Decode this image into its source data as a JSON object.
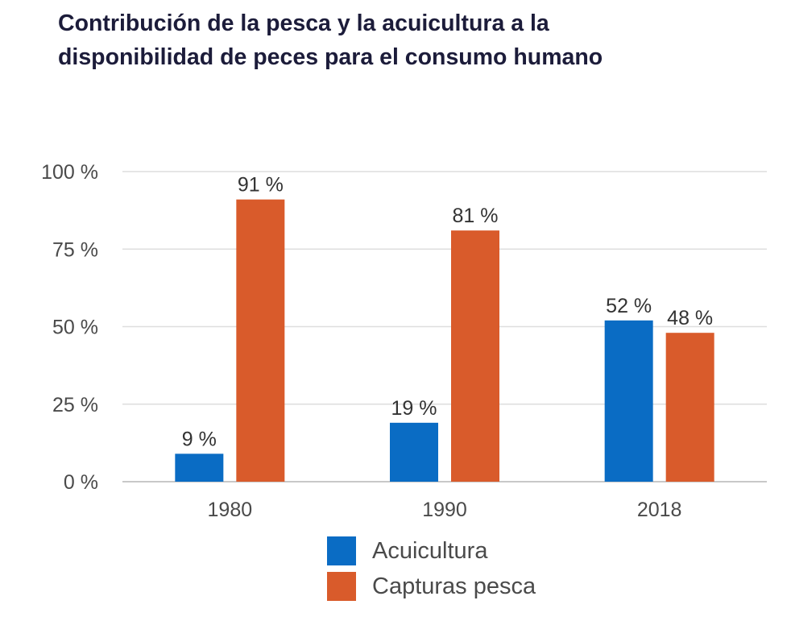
{
  "title": {
    "line1": "Contribución de la pesca y la acuicultura a la",
    "line2": "disponibilidad de peces para el consumo humano"
  },
  "chart_data": {
    "type": "bar",
    "title": "Contribución de la pesca y la acuicultura a la disponibilidad de peces para el consumo humano",
    "categories": [
      "1980",
      "1990",
      "2018"
    ],
    "series": [
      {
        "name": "Acuicultura",
        "values": [
          9,
          19,
          52
        ],
        "color": "#0a6cc4",
        "labels": [
          "9 %",
          "19 %",
          "52 %"
        ]
      },
      {
        "name": "Capturas pesca",
        "values": [
          91,
          81,
          48
        ],
        "color": "#d95b2b",
        "labels": [
          "91 %",
          "81 %",
          "48 %"
        ]
      }
    ],
    "ylim": [
      0,
      100
    ],
    "yticks": [
      0,
      25,
      50,
      75,
      100
    ],
    "ytick_labels": [
      "0 %",
      "25 %",
      "50 %",
      "75 %",
      "100 %"
    ],
    "grid": true,
    "legend_position": "bottom-center"
  }
}
